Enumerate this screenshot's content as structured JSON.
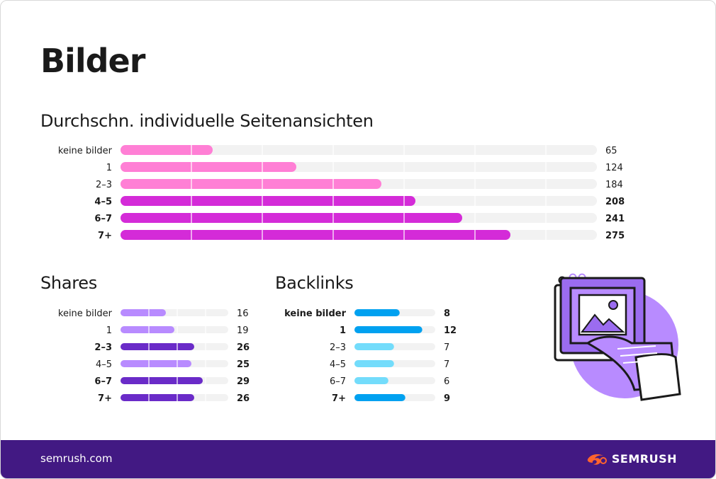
{
  "title": "Bilder",
  "footer": {
    "url": "semrush.com",
    "brand": "SEMRUSH"
  },
  "colors": {
    "track": "#f2f2f2",
    "pink_light": "#ff7fd5",
    "pink_dark": "#d42bd8",
    "purple_light": "#b88bff",
    "purple_dark": "#6a2bc8",
    "blue_light": "#73dcfb",
    "blue_dark": "#00a1f0",
    "footer_bg": "#421983",
    "logo_orange": "#ff642d"
  },
  "illustration": {
    "icon": "image-document-icon"
  },
  "chart_data": [
    {
      "type": "bar",
      "orientation": "horizontal",
      "title": "Durchschn. individuelle Seitenansichten",
      "categories": [
        "keine bilder",
        "1",
        "2–3",
        "4–5",
        "6–7",
        "7+"
      ],
      "values": [
        65,
        124,
        184,
        208,
        241,
        275
      ],
      "highlighted": [
        false,
        false,
        false,
        true,
        true,
        true
      ],
      "xlim": [
        0,
        336
      ],
      "grid": true,
      "legend": "none"
    },
    {
      "type": "bar",
      "orientation": "horizontal",
      "title": "Shares",
      "categories": [
        "keine bilder",
        "1",
        "2–3",
        "4–5",
        "6–7",
        "7+"
      ],
      "values": [
        16,
        19,
        26,
        25,
        29,
        26
      ],
      "highlighted": [
        false,
        false,
        true,
        false,
        true,
        true
      ],
      "xlim": [
        0,
        38
      ],
      "grid": true,
      "legend": "none"
    },
    {
      "type": "bar",
      "orientation": "horizontal",
      "title": "Backlinks",
      "categories": [
        "keine bilder",
        "1",
        "2–3",
        "4–5",
        "6–7",
        "7+"
      ],
      "values": [
        8,
        12,
        7,
        7,
        6,
        9
      ],
      "highlighted": [
        true,
        true,
        false,
        false,
        false,
        true
      ],
      "xlim": [
        0,
        14.3
      ],
      "grid": false,
      "legend": "none"
    }
  ]
}
